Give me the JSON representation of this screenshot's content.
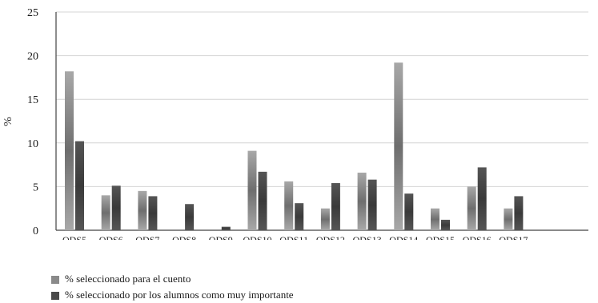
{
  "chart_data": {
    "type": "bar",
    "ylabel": "%",
    "ylim": [
      0,
      25
    ],
    "yticks": [
      0,
      5,
      10,
      15,
      20,
      25
    ],
    "grid": true,
    "legend_position": "bottom-left",
    "categories": [
      "ODS5",
      "ODS6",
      "ODS7",
      "ODS8",
      "ODS9",
      "ODS10",
      "ODS11",
      "ODS12",
      "ODS13",
      "ODS14",
      "ODS15",
      "ODS16",
      "ODS17"
    ],
    "series": [
      {
        "name": "% seleccionado para el cuento",
        "color": "#8a8a8a",
        "values": [
          18.2,
          4.0,
          4.5,
          0,
          0,
          9.1,
          5.6,
          2.5,
          6.6,
          19.2,
          2.5,
          5.0,
          2.5
        ]
      },
      {
        "name": "% seleccionado por los alumnos como muy importante",
        "color": "#4a4a4a",
        "values": [
          10.2,
          5.1,
          3.9,
          3.0,
          0.4,
          6.7,
          3.1,
          5.4,
          5.8,
          4.2,
          1.2,
          7.2,
          3.9
        ]
      }
    ]
  }
}
